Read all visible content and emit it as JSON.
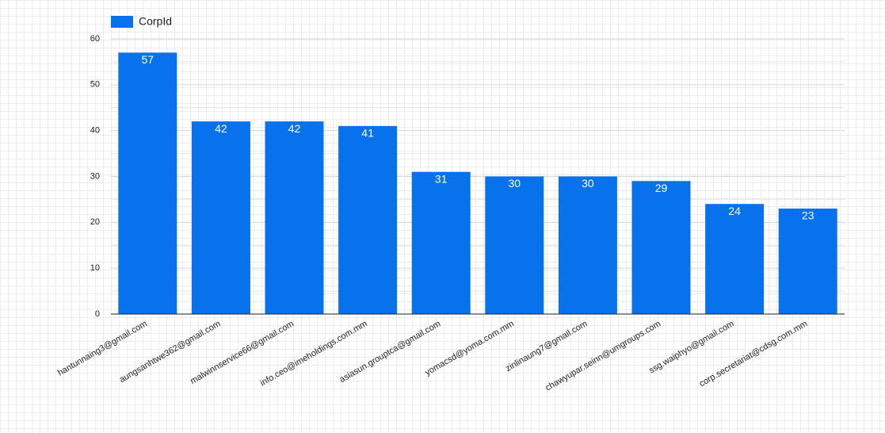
{
  "chart_data": {
    "type": "bar",
    "series": [
      {
        "name": "CorpId",
        "color": "#0872ec",
        "values": [
          57,
          42,
          42,
          41,
          31,
          30,
          30,
          29,
          24,
          23
        ]
      }
    ],
    "categories": [
      "hantunnaing3@gmail.com",
      "aungsanhtwe362@gmail.com",
      "malwinnservice66@gmail.com",
      "info.ceo@imeholdings.com.mm",
      "asiasun.grouptca@gmail.com",
      "yomacsd@yoma.com.mm",
      "zinlinaung7@gmail.com",
      "chawyupar.seinn@umgroups.com",
      "ssg.waiphyo@gmail.com",
      "corp.secretariat@cdsg.com.mm"
    ],
    "ylim": [
      0,
      60
    ],
    "yticks": [
      0,
      10,
      20,
      30,
      40,
      50,
      60
    ],
    "grid": true,
    "legend": "top-left"
  }
}
